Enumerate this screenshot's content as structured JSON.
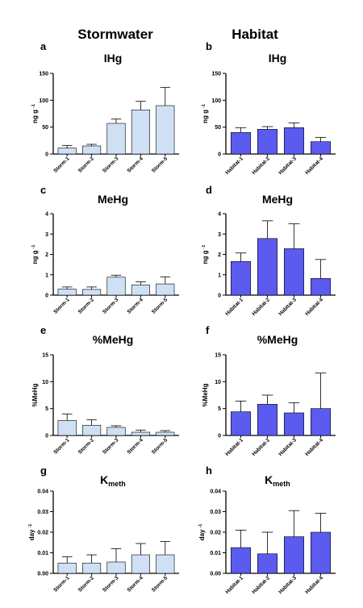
{
  "columns": {
    "left": "Stormwater",
    "right": "Habitat"
  },
  "colors": {
    "stormwater_fill": "#cfe0f5",
    "habitat_fill": "#5b5bf0",
    "axis": "#000000"
  },
  "chart_data": [
    {
      "type": "bar",
      "letter": "a",
      "title_main": "IHg",
      "title_sub": "",
      "ylabel_main": "ng g",
      "ylabel_sup": "-1",
      "categories": [
        "Storm-1",
        "Storm-2",
        "Storm-3",
        "Storm-4",
        "Storm-5"
      ],
      "values": [
        11,
        15,
        57,
        82,
        90
      ],
      "errors": [
        5,
        3,
        8,
        16,
        34
      ],
      "ylim": [
        0,
        150
      ],
      "yticks": [
        "0",
        "50",
        "100",
        "150"
      ],
      "series_color": "stormwater"
    },
    {
      "type": "bar",
      "letter": "b",
      "title_main": "IHg",
      "title_sub": "",
      "ylabel_main": "ng g",
      "ylabel_sup": "-1",
      "categories": [
        "Habitat-1",
        "Habitat-2",
        "Habitat-3",
        "Habitat-4"
      ],
      "values": [
        40,
        46,
        49,
        23
      ],
      "errors": [
        9,
        5,
        9,
        8
      ],
      "ylim": [
        0,
        150
      ],
      "yticks": [
        "0",
        "50",
        "100",
        "150"
      ],
      "series_color": "habitat"
    },
    {
      "type": "bar",
      "letter": "c",
      "title_main": "MeHg",
      "title_sub": "",
      "ylabel_main": "ng g",
      "ylabel_sup": "-1",
      "categories": [
        "Storm-1",
        "Storm-2",
        "Storm-3",
        "Storm-4",
        "Storm-5"
      ],
      "values": [
        0.3,
        0.28,
        0.88,
        0.5,
        0.55
      ],
      "errors": [
        0.1,
        0.12,
        0.1,
        0.15,
        0.35
      ],
      "ylim": [
        0,
        4
      ],
      "yticks": [
        "0",
        "1",
        "2",
        "3",
        "4"
      ],
      "series_color": "stormwater"
    },
    {
      "type": "bar",
      "letter": "d",
      "title_main": "MeHg",
      "title_sub": "",
      "ylabel_main": "ng g",
      "ylabel_sup": "-1",
      "categories": [
        "Habitat-1",
        "Habitat-2",
        "Habitat-3",
        "Habitat-4"
      ],
      "values": [
        1.65,
        2.78,
        2.28,
        0.82
      ],
      "errors": [
        0.42,
        0.87,
        1.22,
        0.93
      ],
      "ylim": [
        0,
        4
      ],
      "yticks": [
        "0",
        "1",
        "2",
        "3",
        "4"
      ],
      "series_color": "habitat"
    },
    {
      "type": "bar",
      "letter": "e",
      "title_main": "%MeHg",
      "title_sub": "",
      "ylabel_main": "%MeHg",
      "ylabel_sup": "",
      "categories": [
        "Storm-1",
        "Storm-2",
        "Storm-3",
        "Storm-4",
        "Storm-5"
      ],
      "values": [
        2.8,
        1.9,
        1.5,
        0.6,
        0.6
      ],
      "errors": [
        1.2,
        1.0,
        0.3,
        0.4,
        0.3
      ],
      "ylim": [
        0,
        15
      ],
      "yticks": [
        "0",
        "5",
        "10",
        "15"
      ],
      "series_color": "stormwater"
    },
    {
      "type": "bar",
      "letter": "f",
      "title_main": "%MeHg",
      "title_sub": "",
      "ylabel_main": "%MeHg",
      "ylabel_sup": "",
      "categories": [
        "Habitat-1",
        "Habitat-2",
        "Habitat-3",
        "Habitat-4"
      ],
      "values": [
        4.4,
        5.8,
        4.2,
        5.0
      ],
      "errors": [
        2.0,
        1.7,
        1.9,
        6.6
      ],
      "ylim": [
        0,
        15
      ],
      "yticks": [
        "0",
        "5",
        "10",
        "15"
      ],
      "series_color": "habitat"
    },
    {
      "type": "bar",
      "letter": "g",
      "title_main": "K",
      "title_sub": "meth",
      "ylabel_main": "day",
      "ylabel_sup": "-1",
      "categories": [
        "Storm-1",
        "Storm-2",
        "Storm-3",
        "Storm-4",
        "Storm-5"
      ],
      "values": [
        0.005,
        0.005,
        0.0055,
        0.009,
        0.009
      ],
      "errors": [
        0.003,
        0.004,
        0.0065,
        0.0055,
        0.0065
      ],
      "ylim": [
        0,
        0.04
      ],
      "yticks": [
        "0.00",
        "0.01",
        "0.02",
        "0.03",
        "0.04"
      ],
      "series_color": "stormwater"
    },
    {
      "type": "bar",
      "letter": "h",
      "title_main": "K",
      "title_sub": "meth",
      "ylabel_main": "day",
      "ylabel_sup": "-1",
      "categories": [
        "Habitat-1",
        "Habitat-2",
        "Habitat-3",
        "Habitat-4"
      ],
      "values": [
        0.0125,
        0.0095,
        0.0178,
        0.02
      ],
      "errors": [
        0.0085,
        0.0105,
        0.0127,
        0.0092
      ],
      "ylim": [
        0,
        0.04
      ],
      "yticks": [
        "0.00",
        "0.01",
        "0.02",
        "0.03",
        "0.04"
      ],
      "series_color": "habitat"
    }
  ]
}
